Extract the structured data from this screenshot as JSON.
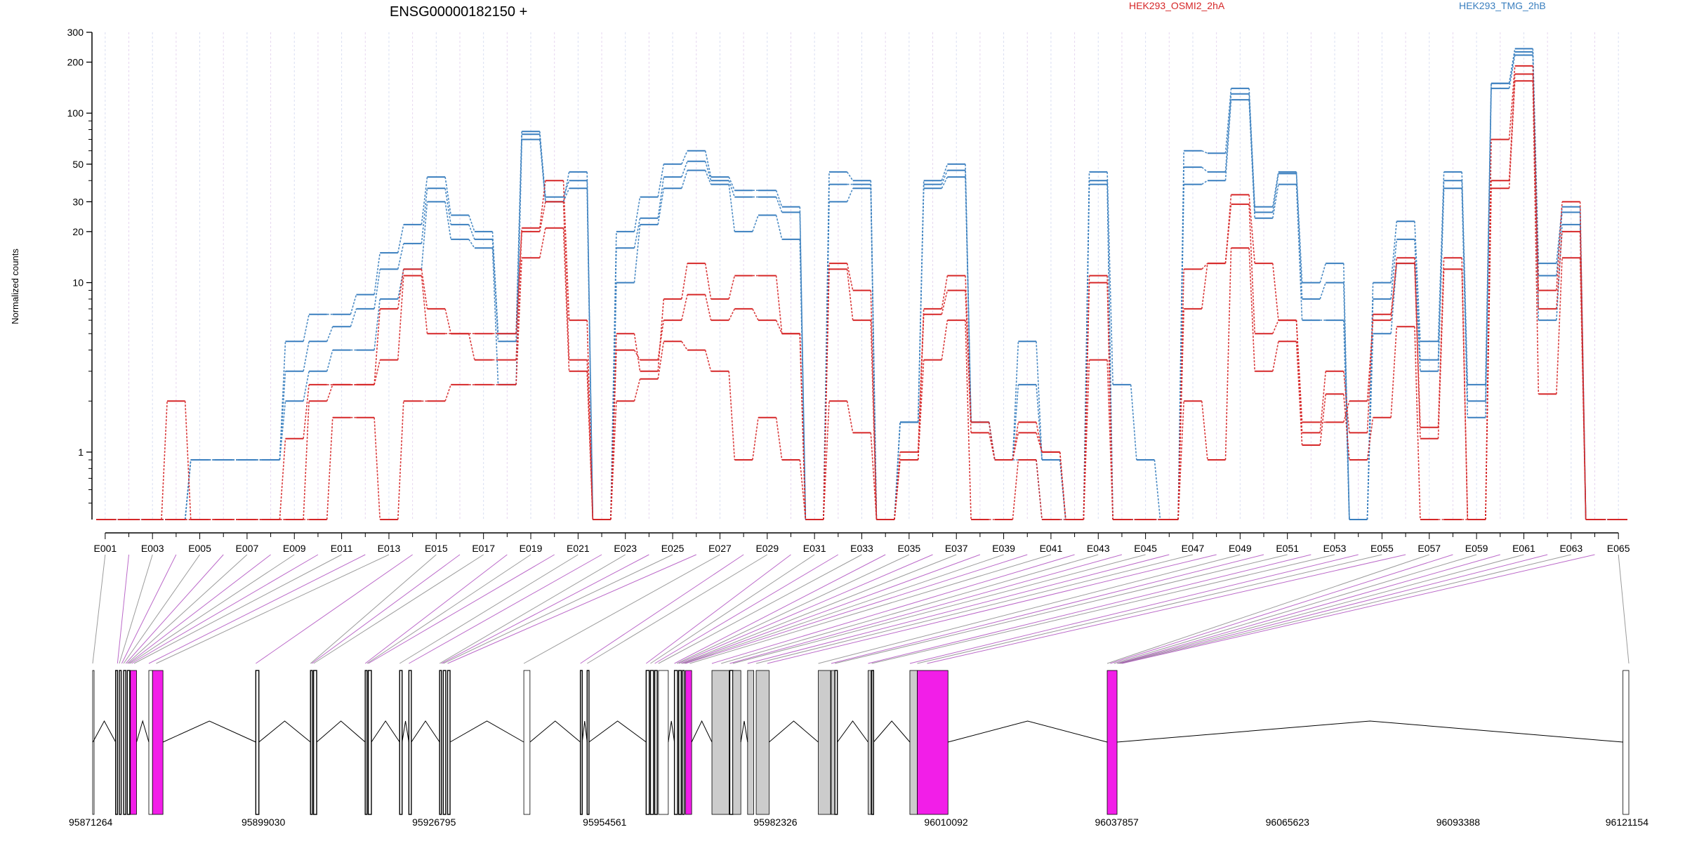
{
  "chart_data": {
    "type": "line",
    "title": "ENSG00000182150 +",
    "ylabel": "Normalized counts",
    "xlabel": "",
    "y_scale": "log",
    "ylim": [
      0.4,
      300
    ],
    "y_ticks": [
      1,
      10,
      20,
      30,
      50,
      100,
      200,
      300
    ],
    "y_tick_labels": [
      "1",
      "10",
      "20",
      "30",
      "50",
      "100",
      "200",
      "300"
    ],
    "grid": "vertical dotted lines at each exon",
    "legend_placement": "top",
    "legend": [
      {
        "label": "HEK293_OSMI2_2hA",
        "color": "#d62728"
      },
      {
        "label": "HEK293_TMG_2hB",
        "color": "#3a7fbf"
      }
    ],
    "exon_count": 65,
    "exon_tick_labels": [
      "E001",
      "E003",
      "E005",
      "E007",
      "E009",
      "E011",
      "E013",
      "E015",
      "E017",
      "E019",
      "E021",
      "E023",
      "E025",
      "E027",
      "E029",
      "E031",
      "E033",
      "E035",
      "E037",
      "E039",
      "E041",
      "E043",
      "E045",
      "E047",
      "E049",
      "E051",
      "E053",
      "E055",
      "E057",
      "E059",
      "E061",
      "E063",
      "E065"
    ],
    "series": [
      {
        "name": "HEK293_TMG_2hB",
        "color": "#3a7fbf",
        "values": [
          0.4,
          0.4,
          0.4,
          0.4,
          0.9,
          0.9,
          0.9,
          0.9,
          4.5,
          6.5,
          6.5,
          8.5,
          15,
          22,
          42,
          25,
          20,
          5,
          78,
          30,
          45,
          0.4,
          20,
          32,
          50,
          60,
          42,
          35,
          35,
          28,
          0.4,
          45,
          40,
          0.4,
          1.5,
          40,
          50,
          1.5,
          0.9,
          4.5,
          0.9,
          0.4,
          45,
          2.5,
          0.9,
          0.4,
          60,
          58,
          140,
          28,
          45,
          10,
          13,
          0.4,
          10,
          23,
          4.5,
          45,
          2.5,
          150,
          240,
          13,
          28,
          0.4,
          0.4
        ]
      },
      {
        "name": "HEK293_TMG_2hB",
        "color": "#3a7fbf",
        "values": [
          0.4,
          0.4,
          0.4,
          0.4,
          0.9,
          0.9,
          0.9,
          0.9,
          3,
          4.5,
          5.5,
          7,
          12,
          17,
          36,
          22,
          18,
          4.5,
          75,
          32,
          40,
          0.4,
          16,
          24,
          42,
          52,
          40,
          32,
          32,
          26,
          0.4,
          38,
          38,
          0.4,
          1.5,
          38,
          46,
          1.5,
          0.9,
          2.5,
          0.9,
          0.4,
          40,
          0.4,
          0.4,
          0.4,
          48,
          45,
          130,
          26,
          44,
          8,
          10,
          0.4,
          8,
          18,
          3.5,
          40,
          2,
          150,
          230,
          11,
          26,
          0.4,
          0.4
        ]
      },
      {
        "name": "HEK293_TMG_2hB",
        "color": "#3a7fbf",
        "values": [
          0.4,
          0.4,
          0.4,
          0.4,
          0.9,
          0.9,
          0.9,
          0.9,
          2,
          3,
          4,
          4,
          8,
          12,
          30,
          18,
          16,
          2.5,
          70,
          30,
          36,
          0.4,
          10,
          22,
          36,
          46,
          38,
          20,
          25,
          18,
          0.4,
          30,
          36,
          0.4,
          1.5,
          36,
          42,
          1.5,
          0.9,
          0.9,
          0.4,
          0.4,
          38,
          0.4,
          0.4,
          0.4,
          38,
          40,
          120,
          24,
          38,
          6,
          6,
          0.4,
          5,
          13,
          3,
          36,
          1.6,
          140,
          220,
          6,
          22,
          0.4,
          0.4
        ]
      },
      {
        "name": "HEK293_OSMI2_2hA",
        "color": "#d62728",
        "values": [
          0.4,
          0.4,
          0.4,
          2,
          0.4,
          0.4,
          0.4,
          0.4,
          1.2,
          2.5,
          2.5,
          2.5,
          7,
          12,
          7,
          5,
          5,
          5,
          21,
          40,
          6,
          0.4,
          5,
          3,
          8,
          13,
          8,
          11,
          11,
          5,
          0.4,
          13,
          9,
          0.4,
          1,
          7,
          11,
          1.5,
          0.9,
          1.5,
          1,
          0.4,
          11,
          0.4,
          0.4,
          0.4,
          12,
          13,
          33,
          13,
          6,
          1.5,
          1.5,
          2,
          6,
          14,
          1.4,
          14,
          0.4,
          70,
          190,
          9,
          30,
          0.4,
          0.4
        ]
      },
      {
        "name": "HEK293_OSMI2_2hA",
        "color": "#d62728",
        "values": [
          0.4,
          0.4,
          0.4,
          0.4,
          0.4,
          0.4,
          0.4,
          0.4,
          0.4,
          2,
          2.5,
          2.5,
          3.5,
          11,
          5,
          5,
          3.5,
          3.5,
          20,
          30,
          3.5,
          0.4,
          4,
          3.5,
          6,
          8.5,
          6,
          7,
          6,
          5,
          0.4,
          12,
          6,
          0.4,
          0.9,
          6.5,
          9,
          1.3,
          0.9,
          1.3,
          1,
          0.4,
          10,
          0.4,
          0.4,
          0.4,
          7,
          13,
          29,
          5,
          6,
          1.3,
          3,
          1.3,
          6.5,
          13,
          1.2,
          12,
          0.4,
          40,
          170,
          7,
          20,
          0.4,
          0.4
        ]
      },
      {
        "name": "HEK293_OSMI2_2hA",
        "color": "#d62728",
        "values": [
          0.4,
          0.4,
          0.4,
          0.4,
          0.4,
          0.4,
          0.4,
          0.4,
          0.4,
          0.4,
          1.6,
          1.6,
          0.4,
          2,
          2,
          2.5,
          2.5,
          2.5,
          14,
          21,
          3,
          0.4,
          2,
          2.7,
          4.5,
          4,
          3,
          0.9,
          1.6,
          0.9,
          0.4,
          2,
          1.3,
          0.4,
          0.9,
          3.5,
          6,
          0.4,
          0.4,
          0.9,
          0.4,
          0.4,
          3.5,
          0.4,
          0.4,
          0.4,
          2,
          0.9,
          16,
          3,
          4.5,
          1.1,
          2.2,
          0.9,
          1.6,
          5.5,
          0.4,
          0.4,
          0.4,
          36,
          155,
          2.2,
          14,
          0.4,
          0.4
        ]
      }
    ],
    "genomic_axis": {
      "tick_labels": [
        "95871264",
        "95899030",
        "95926795",
        "95954561",
        "95982326",
        "96010092",
        "96037857",
        "96065623",
        "96093388",
        "96121154"
      ],
      "start": 95871264,
      "end": 96121154
    }
  }
}
